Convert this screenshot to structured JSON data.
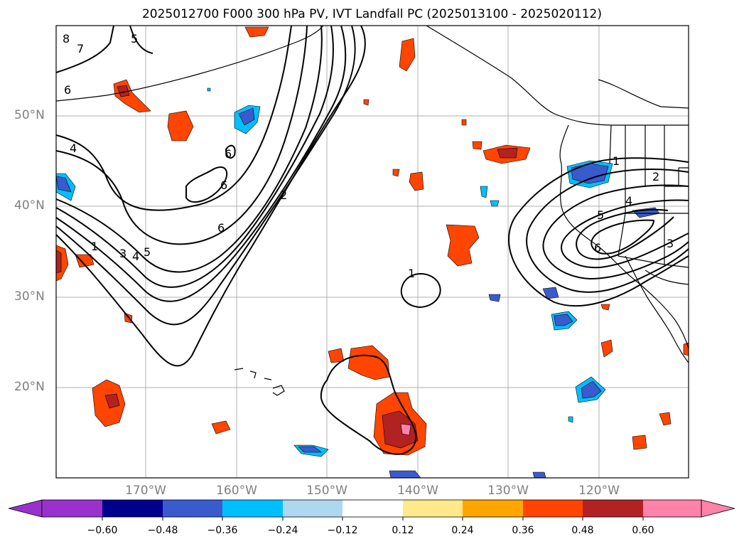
{
  "title": "2025012700 F000 300 hPa PV, IVT Landfall PC (2025013100 - 2025020112)",
  "map": {
    "lat_labels": [
      "50°N",
      "40°N",
      "30°N",
      "20°N"
    ],
    "lon_labels": [
      "170°W",
      "160°W",
      "150°W",
      "140°W",
      "130°W",
      "120°W"
    ],
    "contour_labels": [
      "8",
      "7",
      "5",
      "6",
      "4",
      "6",
      "6",
      "2",
      "6",
      "1",
      "3",
      "4",
      "5",
      "1",
      "1",
      "2",
      "4",
      "5",
      "6",
      "3"
    ]
  },
  "colorbar": {
    "ticks": [
      "−0.60",
      "−0.48",
      "−0.36",
      "−0.24",
      "−0.12",
      "0.12",
      "0.24",
      "0.36",
      "0.48",
      "0.60"
    ],
    "colors": [
      "#9932cc",
      "#00008b",
      "#3a5bcd",
      "#00bfff",
      "#add8f0",
      "#ffffff",
      "#ffe98a",
      "#ffa500",
      "#ff4500",
      "#b22222",
      "#ff82ab"
    ]
  }
}
